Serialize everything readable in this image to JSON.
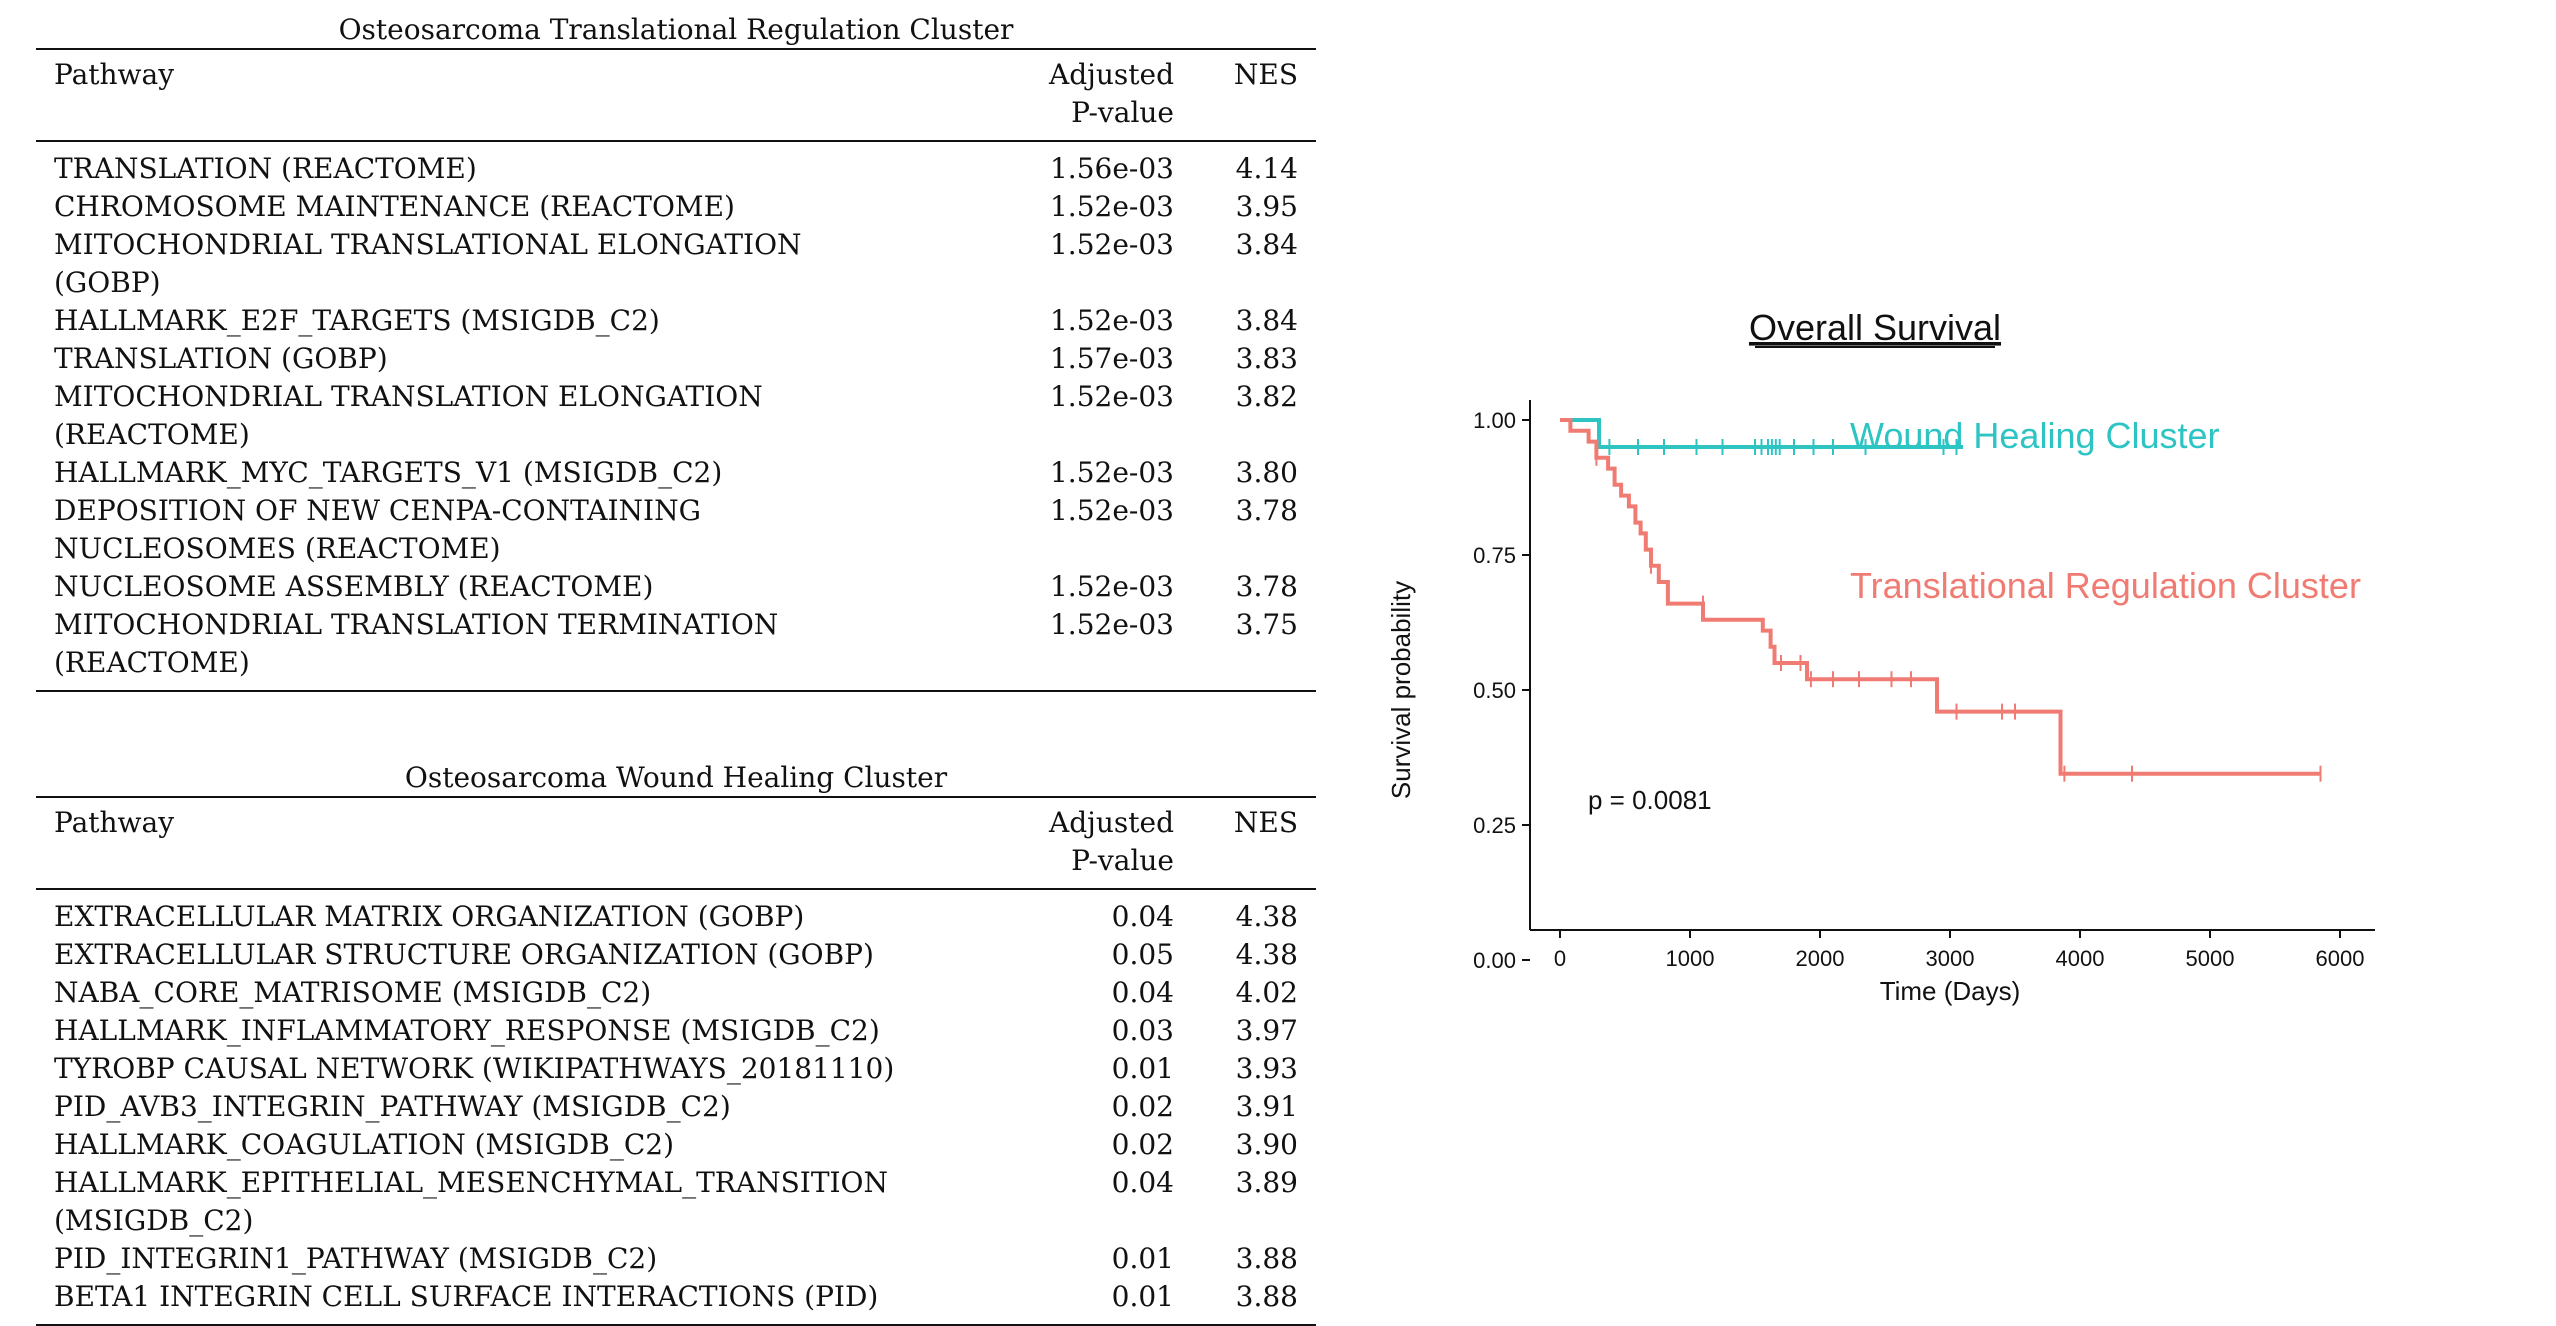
{
  "table1": {
    "caption": "Osteosarcoma Translational Regulation Cluster",
    "headers": {
      "pathway": "Pathway",
      "pvalue_line1": "Adjusted",
      "pvalue_line2": "P-value",
      "nes": "NES"
    },
    "rows": [
      {
        "pathway": "TRANSLATION (REACTOME)",
        "pvalue": "1.56e-03",
        "nes": "4.14"
      },
      {
        "pathway": "CHROMOSOME MAINTENANCE (REACTOME)",
        "pvalue": "1.52e-03",
        "nes": "3.95"
      },
      {
        "pathway": "MITOCHONDRIAL TRANSLATIONAL ELONGATION (GOBP)",
        "pvalue": "1.52e-03",
        "nes": "3.84"
      },
      {
        "pathway": "HALLMARK_E2F_TARGETS (MSIGDB_C2)",
        "pvalue": "1.52e-03",
        "nes": "3.84"
      },
      {
        "pathway": "TRANSLATION (GOBP)",
        "pvalue": "1.57e-03",
        "nes": "3.83"
      },
      {
        "pathway": "MITOCHONDRIAL TRANSLATION ELONGATION (REACTOME)",
        "pvalue": "1.52e-03",
        "nes": "3.82"
      },
      {
        "pathway": "HALLMARK_MYC_TARGETS_V1 (MSIGDB_C2)",
        "pvalue": "1.52e-03",
        "nes": "3.80"
      },
      {
        "pathway": "DEPOSITION OF NEW CENPA-CONTAINING NUCLEOSOMES (REACTOME)",
        "pvalue": "1.52e-03",
        "nes": "3.78"
      },
      {
        "pathway": "NUCLEOSOME ASSEMBLY (REACTOME)",
        "pvalue": "1.52e-03",
        "nes": "3.78"
      },
      {
        "pathway": "MITOCHONDRIAL TRANSLATION TERMINATION (REACTOME)",
        "pvalue": "1.52e-03",
        "nes": "3.75"
      }
    ]
  },
  "table2": {
    "caption": "Osteosarcoma Wound Healing Cluster",
    "headers": {
      "pathway": "Pathway",
      "pvalue_line1": "Adjusted",
      "pvalue_line2": "P-value",
      "nes": "NES"
    },
    "rows": [
      {
        "pathway": "EXTRACELLULAR MATRIX ORGANIZATION (GOBP)",
        "pvalue": "0.04",
        "nes": "4.38"
      },
      {
        "pathway": "EXTRACELLULAR STRUCTURE ORGANIZATION (GOBP)",
        "pvalue": "0.05",
        "nes": "4.38"
      },
      {
        "pathway": "NABA_CORE_MATRISOME (MSIGDB_C2)",
        "pvalue": "0.04",
        "nes": "4.02"
      },
      {
        "pathway": "HALLMARK_INFLAMMATORY_RESPONSE (MSIGDB_C2)",
        "pvalue": "0.03",
        "nes": "3.97"
      },
      {
        "pathway": "TYROBP CAUSAL NETWORK (WIKIPATHWAYS_20181110)",
        "pvalue": "0.01",
        "nes": "3.93"
      },
      {
        "pathway": "PID_AVB3_INTEGRIN_PATHWAY (MSIGDB_C2)",
        "pvalue": "0.02",
        "nes": "3.91"
      },
      {
        "pathway": "HALLMARK_COAGULATION (MSIGDB_C2)",
        "pvalue": "0.02",
        "nes": "3.90"
      },
      {
        "pathway": "HALLMARK_EPITHELIAL_MESENCHYMAL_TRANSITION (MSIGDB_C2)",
        "pvalue": "0.04",
        "nes": "3.89"
      },
      {
        "pathway": "PID_INTEGRIN1_PATHWAY (MSIGDB_C2)",
        "pvalue": "0.01",
        "nes": "3.88"
      },
      {
        "pathway": "BETA1 INTEGRIN CELL SURFACE INTERACTIONS (PID)",
        "pvalue": "0.01",
        "nes": "3.88"
      }
    ]
  },
  "chart_data": {
    "type": "line",
    "title": "Overall Survival",
    "xlabel": "Time (Days)",
    "ylabel": "Survival probability",
    "xlim": [
      0,
      6000
    ],
    "ylim": [
      0,
      1
    ],
    "xticks": [
      0,
      1000,
      2000,
      3000,
      4000,
      5000,
      6000
    ],
    "yticks": [
      "0.00",
      "0.25",
      "0.50",
      "0.75",
      "1.00"
    ],
    "annotation": "p = 0.0081",
    "step": true,
    "series": [
      {
        "name": "Wound Healing Cluster",
        "color": "#2ec4c4",
        "x": [
          0,
          300,
          300,
          3100
        ],
        "y": [
          1.0,
          1.0,
          0.95,
          0.95
        ],
        "censored_x": [
          380,
          600,
          800,
          1050,
          1250,
          1500,
          1550,
          1600,
          1630,
          1660,
          1690,
          1800,
          1950,
          2100,
          2350,
          2950,
          3050
        ],
        "censored_y": 0.95
      },
      {
        "name": "Translational Regulation Cluster",
        "color": "#f07b72",
        "x": [
          0,
          80,
          80,
          220,
          220,
          280,
          280,
          370,
          370,
          420,
          420,
          470,
          470,
          530,
          530,
          580,
          580,
          620,
          620,
          660,
          660,
          700,
          700,
          760,
          760,
          830,
          830,
          1020,
          1020,
          1100,
          1100,
          1560,
          1560,
          1620,
          1620,
          1650,
          1650,
          1700,
          1700,
          1900,
          1900,
          2900,
          2900,
          3850,
          3850,
          5850
        ],
        "y": [
          1.0,
          1.0,
          0.98,
          0.98,
          0.96,
          0.96,
          0.93,
          0.93,
          0.91,
          0.91,
          0.88,
          0.88,
          0.86,
          0.86,
          0.84,
          0.84,
          0.81,
          0.81,
          0.79,
          0.79,
          0.76,
          0.76,
          0.73,
          0.73,
          0.7,
          0.7,
          0.66,
          0.66,
          0.66,
          0.66,
          0.63,
          0.63,
          0.61,
          0.61,
          0.58,
          0.58,
          0.55,
          0.55,
          0.55,
          0.55,
          0.52,
          0.52,
          0.46,
          0.46,
          0.345,
          0.345
        ],
        "censored": [
          {
            "x": 280,
            "y": 0.93
          },
          {
            "x": 700,
            "y": 0.73
          },
          {
            "x": 1100,
            "y": 0.66
          },
          {
            "x": 1700,
            "y": 0.55
          },
          {
            "x": 1850,
            "y": 0.55
          },
          {
            "x": 1930,
            "y": 0.52
          },
          {
            "x": 2100,
            "y": 0.52
          },
          {
            "x": 2300,
            "y": 0.52
          },
          {
            "x": 2550,
            "y": 0.52
          },
          {
            "x": 2700,
            "y": 0.52
          },
          {
            "x": 3050,
            "y": 0.46
          },
          {
            "x": 3400,
            "y": 0.46
          },
          {
            "x": 3500,
            "y": 0.46
          },
          {
            "x": 3880,
            "y": 0.345
          },
          {
            "x": 4400,
            "y": 0.345
          },
          {
            "x": 5850,
            "y": 0.345
          }
        ]
      }
    ],
    "legend_labels": [
      {
        "text": "Wound Healing Cluster",
        "color": "#2ec4c4"
      },
      {
        "text": "Translational Regulation Cluster",
        "color": "#f07b72"
      }
    ]
  }
}
